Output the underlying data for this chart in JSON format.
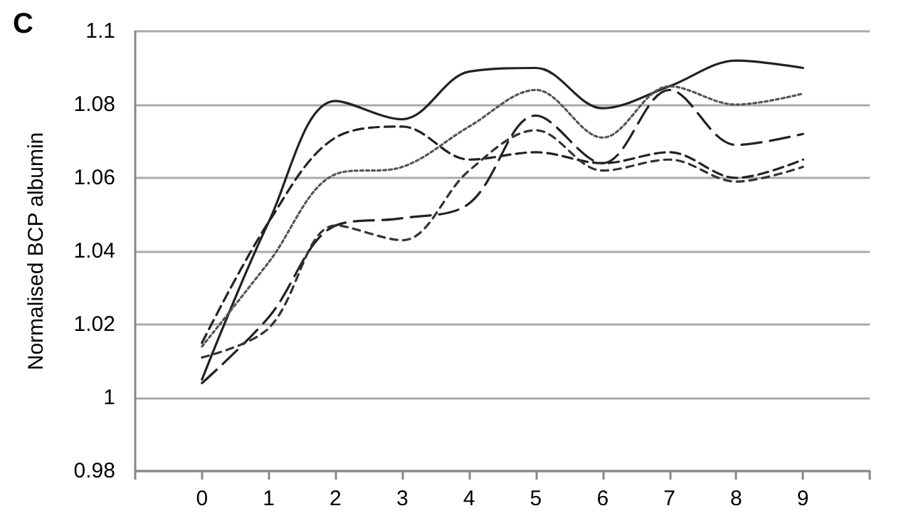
{
  "chart_data": {
    "type": "line",
    "title": "C",
    "ylabel": "Normalised BCP albumin",
    "x": [
      0,
      1,
      2,
      3,
      4,
      5,
      6,
      7,
      8,
      9
    ],
    "series": [
      {
        "color": "#222222",
        "line_style": "solid",
        "values": [
          1.005,
          1.048,
          1.081,
          1.076,
          1.089,
          1.09,
          1.079,
          1.085,
          1.092,
          1.09
        ]
      },
      {
        "color": "#555555",
        "line_style": "dotted",
        "values": [
          1.014,
          1.037,
          1.061,
          1.063,
          1.074,
          1.084,
          1.071,
          1.085,
          1.08,
          1.083
        ]
      },
      {
        "color": "#222222",
        "line_style": "dashed",
        "values": [
          1.015,
          1.048,
          1.071,
          1.074,
          1.065,
          1.067,
          1.064,
          1.067,
          1.06,
          1.065
        ]
      },
      {
        "color": "#222222",
        "line_style": "dashed",
        "values": [
          1.004,
          1.022,
          1.047,
          1.049,
          1.053,
          1.077,
          1.064,
          1.084,
          1.069,
          1.072
        ]
      },
      {
        "color": "#333333",
        "line_style": "dashed",
        "values": [
          1.011,
          1.019,
          1.047,
          1.043,
          1.062,
          1.073,
          1.062,
          1.065,
          1.059,
          1.063
        ]
      }
    ],
    "xlim": [
      -1,
      10
    ],
    "xticks": [
      {
        "value": -1,
        "label": null
      },
      0,
      1,
      2,
      3,
      4,
      5,
      6,
      7,
      8,
      9,
      {
        "value": 10,
        "label": null
      }
    ],
    "ylim": [
      0.98,
      1.1
    ],
    "yticks": [
      0.98,
      1,
      1.02,
      1.04,
      1.06,
      1.08,
      1.1
    ],
    "grid": "y",
    "marker": "none"
  }
}
